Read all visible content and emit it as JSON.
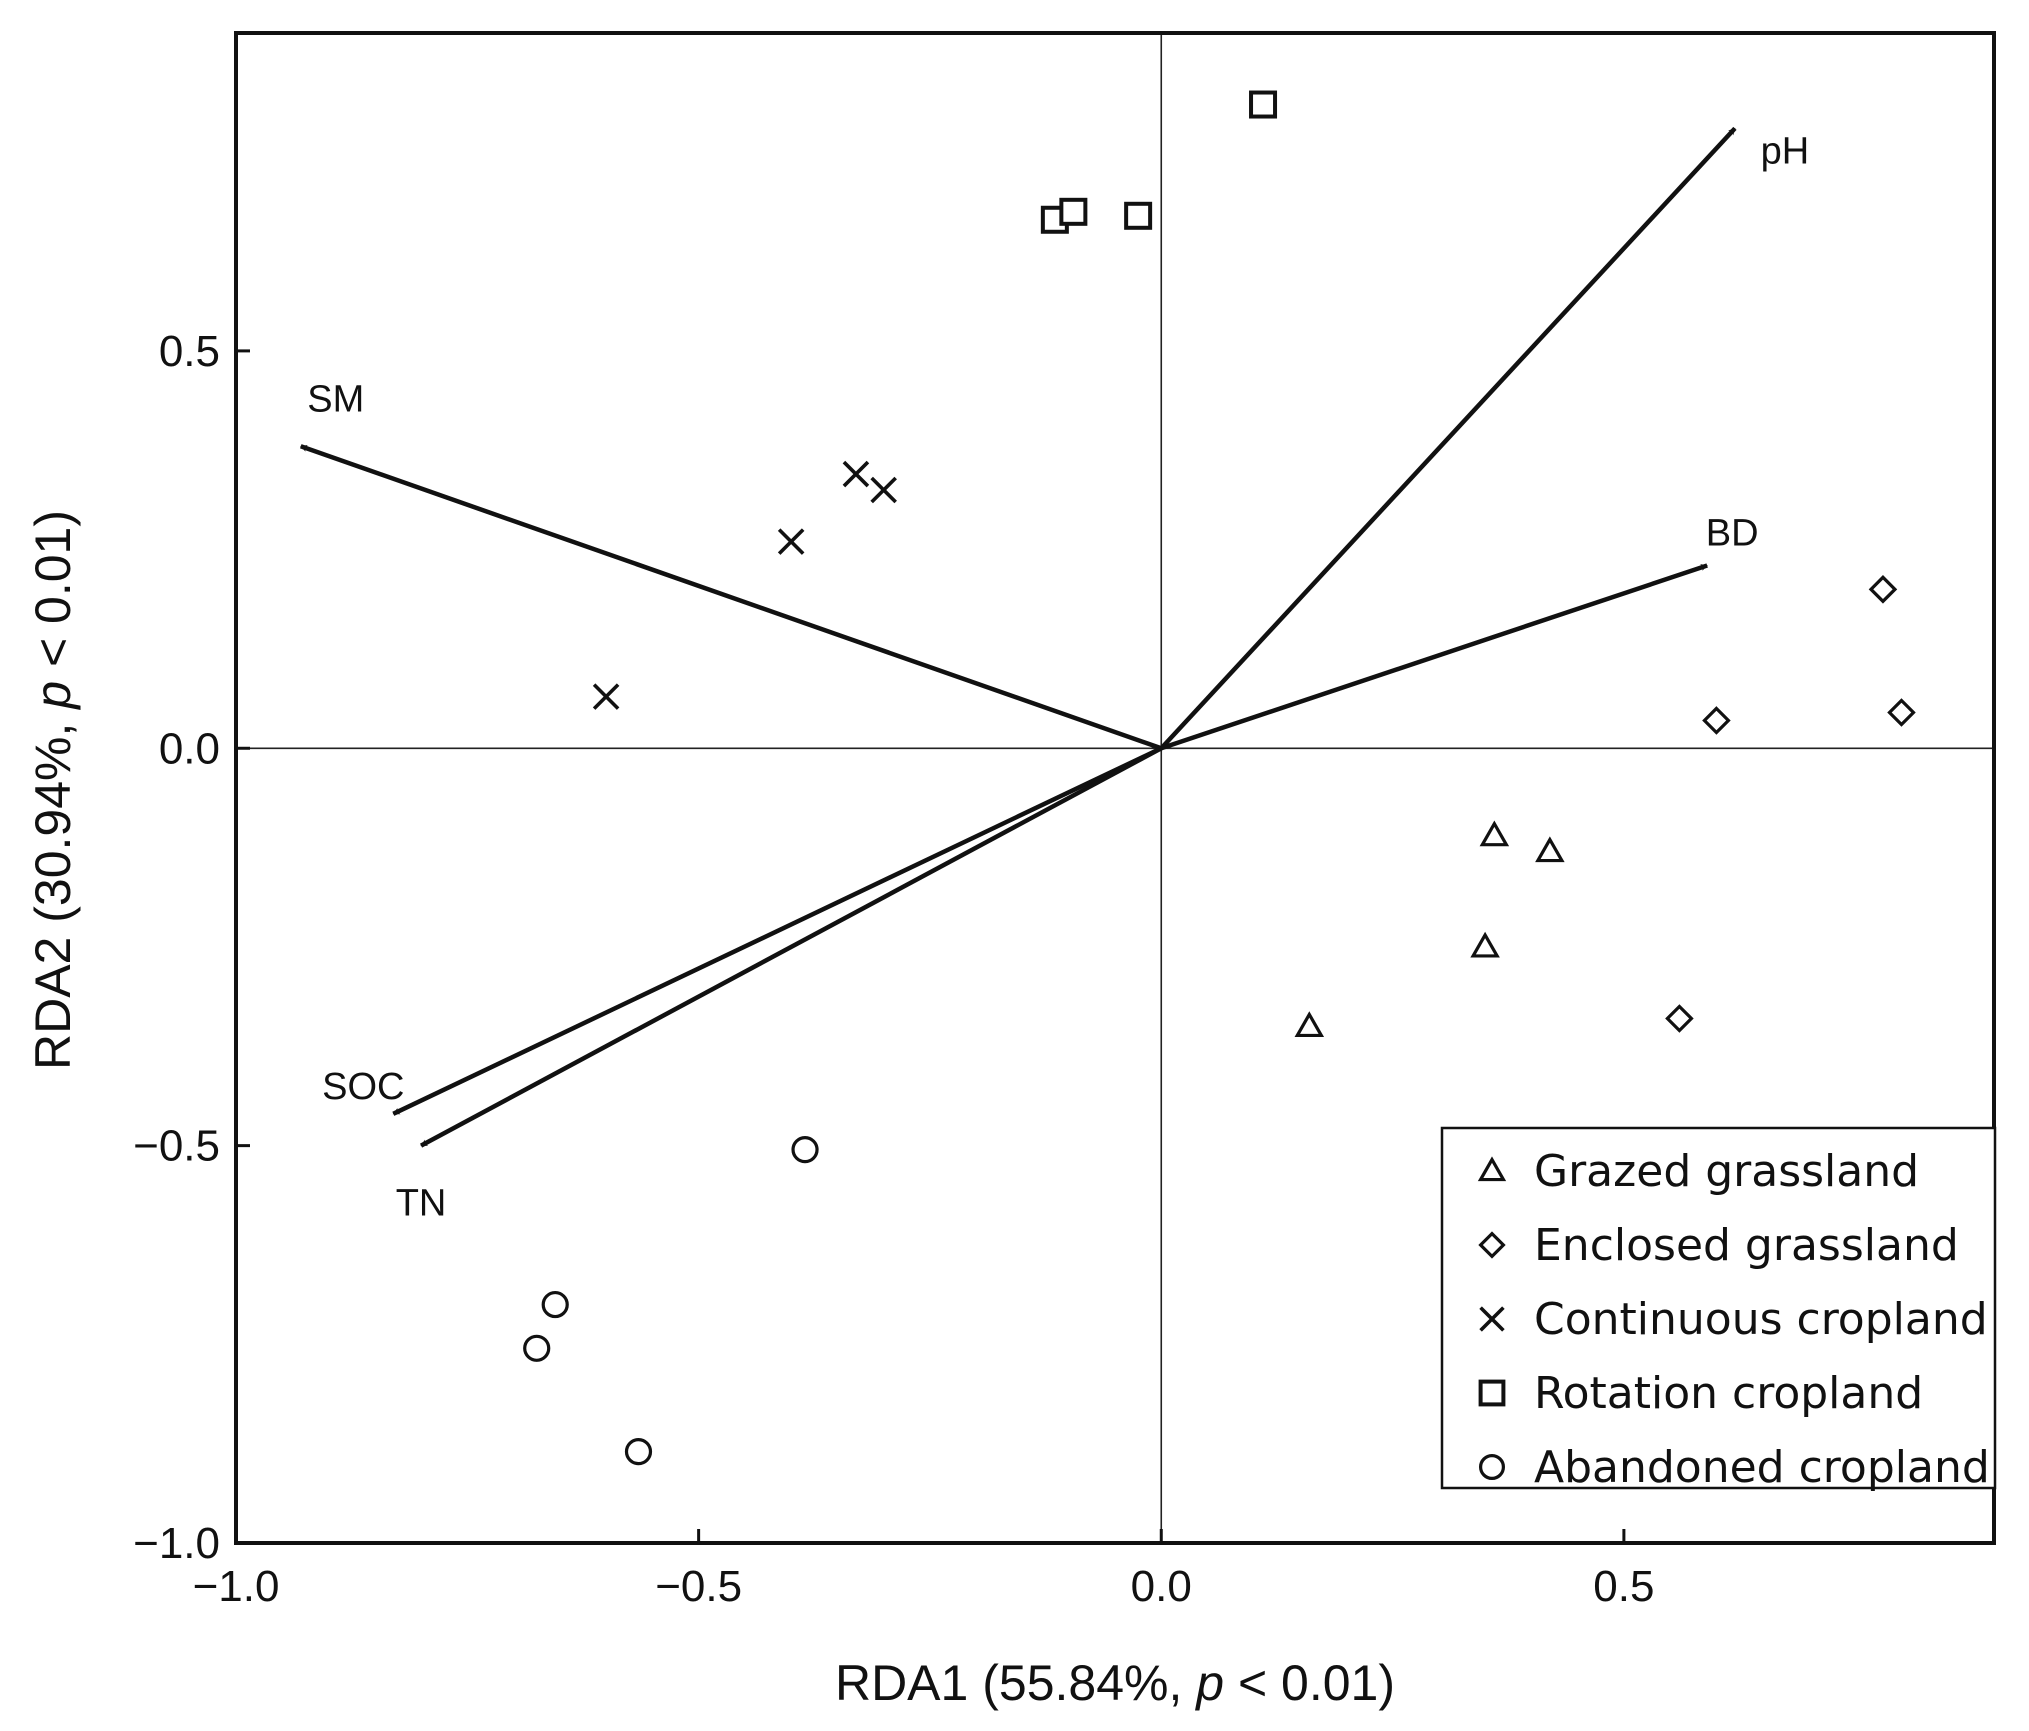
{
  "chart_data": {
    "type": "scatter",
    "subtype": "RDA biplot",
    "x_axis": {
      "label_prefix": "RDA1 (55.84%, ",
      "label_italic": "p",
      "label_suffix": " < 0.01)",
      "range": [
        -1.0,
        0.9
      ],
      "ticks": [
        -1.0,
        -0.5,
        0.0,
        0.5
      ],
      "tick_labels": [
        "−1.0",
        "−0.5",
        "0.0",
        "0.5"
      ]
    },
    "y_axis": {
      "label_prefix": "RDA2 (30.94%, ",
      "label_italic": "p",
      "label_suffix": " < 0.01)",
      "range": [
        -1.0,
        0.9
      ],
      "ticks": [
        -1.0,
        -0.5,
        0.0,
        0.5
      ],
      "tick_labels": [
        "−1.0",
        "−0.5",
        "0.0",
        "0.5"
      ]
    },
    "vectors": [
      {
        "name": "pH",
        "x": 0.62,
        "y": 0.78
      },
      {
        "name": "BD",
        "x": 0.59,
        "y": 0.23
      },
      {
        "name": "SM",
        "x": -0.93,
        "y": 0.38
      },
      {
        "name": "SOC",
        "x": -0.83,
        "y": -0.46
      },
      {
        "name": "TN",
        "x": -0.8,
        "y": -0.5
      }
    ],
    "series": [
      {
        "name": "Grazed grassland",
        "marker": "triangle",
        "points": [
          [
            0.36,
            -0.11
          ],
          [
            0.42,
            -0.13
          ],
          [
            0.35,
            -0.25
          ],
          [
            0.16,
            -0.35
          ]
        ]
      },
      {
        "name": "Enclosed grassland",
        "marker": "diamond",
        "points": [
          [
            0.78,
            0.2
          ],
          [
            0.8,
            0.045
          ],
          [
            0.6,
            0.035
          ],
          [
            0.56,
            -0.34
          ]
        ]
      },
      {
        "name": "Continuous cropland",
        "marker": "cross",
        "points": [
          [
            -0.33,
            0.345
          ],
          [
            -0.3,
            0.325
          ],
          [
            -0.4,
            0.26
          ],
          [
            -0.6,
            0.065
          ]
        ]
      },
      {
        "name": "Rotation cropland",
        "marker": "square",
        "points": [
          [
            0.11,
            0.81
          ],
          [
            -0.115,
            0.665
          ],
          [
            -0.095,
            0.675
          ],
          [
            -0.025,
            0.67
          ]
        ]
      },
      {
        "name": "Abandoned cropland",
        "marker": "circle",
        "points": [
          [
            -0.385,
            -0.505
          ],
          [
            -0.655,
            -0.7
          ],
          [
            -0.675,
            -0.755
          ],
          [
            -0.565,
            -0.885
          ]
        ]
      }
    ],
    "legend_position": "bottom-right",
    "reference_lines": {
      "x": 0,
      "y": 0
    }
  }
}
